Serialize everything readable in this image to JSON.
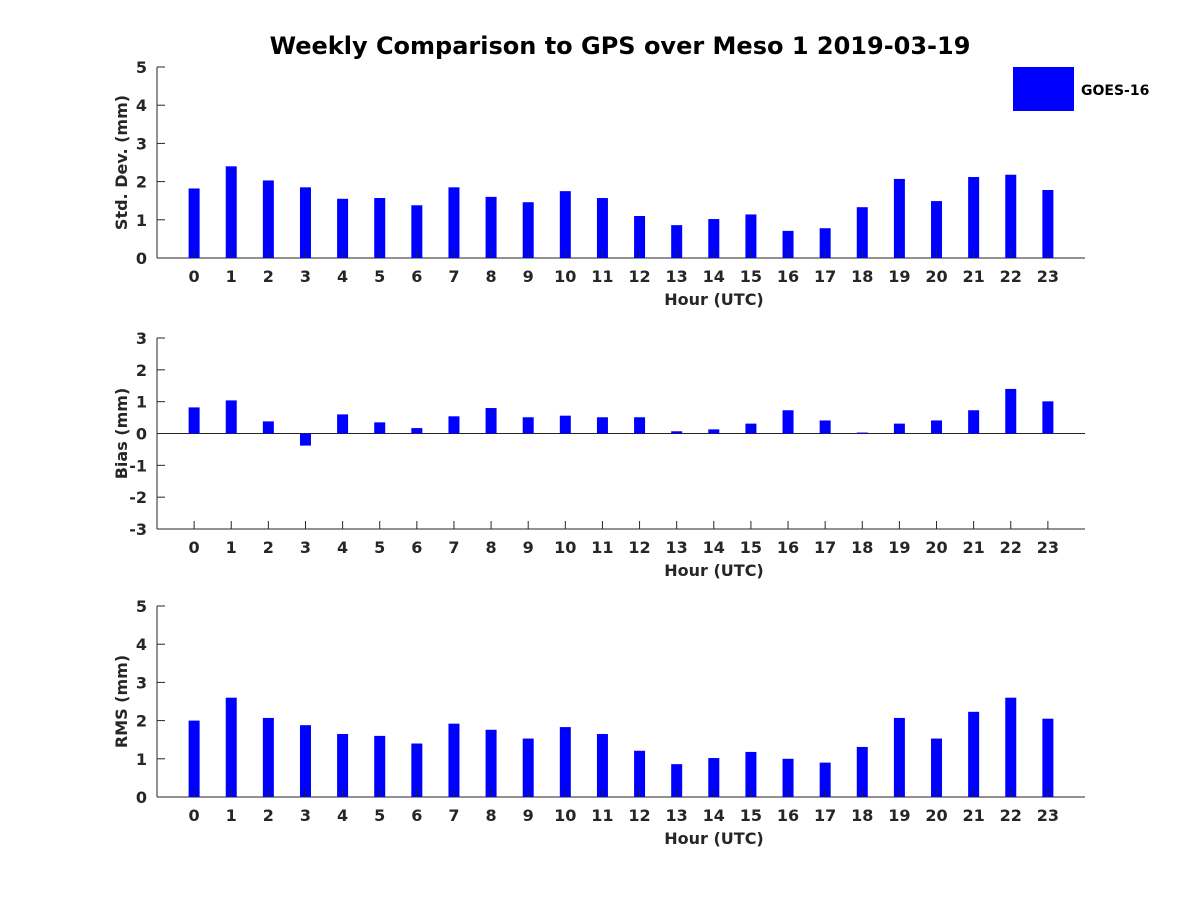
{
  "chart_data": {
    "title": "Weekly Comparison to GPS over Meso 1 2019-03-19",
    "legend": {
      "label": "GOES-16",
      "color": "#0000ff",
      "placement": "top-right"
    },
    "bar_color": "#0000ff",
    "panels": [
      {
        "type": "bar",
        "ylabel": "Std. Dev. (mm)",
        "xlabel": "Hour (UTC)",
        "ylim": [
          0,
          5
        ],
        "yticks": [
          "0",
          "1",
          "2",
          "3",
          "4",
          "5"
        ],
        "categories": [
          "0",
          "1",
          "2",
          "3",
          "4",
          "5",
          "6",
          "7",
          "8",
          "9",
          "10",
          "11",
          "12",
          "13",
          "14",
          "15",
          "16",
          "17",
          "18",
          "19",
          "20",
          "21",
          "22",
          "23"
        ],
        "values": [
          1.82,
          2.4,
          2.03,
          1.85,
          1.55,
          1.57,
          1.38,
          1.85,
          1.6,
          1.46,
          1.75,
          1.57,
          1.1,
          0.86,
          1.02,
          1.14,
          0.71,
          0.78,
          1.33,
          2.07,
          1.49,
          2.12,
          2.18,
          1.78
        ]
      },
      {
        "type": "bar",
        "ylabel": "Bias (mm)",
        "xlabel": "Hour (UTC)",
        "ylim": [
          -3,
          3
        ],
        "yticks": [
          "-3",
          "-2",
          "-1",
          "0",
          "1",
          "2",
          "3"
        ],
        "categories": [
          "0",
          "1",
          "2",
          "3",
          "4",
          "5",
          "6",
          "7",
          "8",
          "9",
          "10",
          "11",
          "12",
          "13",
          "14",
          "15",
          "16",
          "17",
          "18",
          "19",
          "20",
          "21",
          "22",
          "23"
        ],
        "values": [
          0.82,
          1.04,
          0.38,
          -0.38,
          0.6,
          0.35,
          0.17,
          0.54,
          0.8,
          0.51,
          0.56,
          0.51,
          0.51,
          0.07,
          0.13,
          0.31,
          0.73,
          0.41,
          0.03,
          0.31,
          0.41,
          0.73,
          1.4,
          1.01
        ]
      },
      {
        "type": "bar",
        "ylabel": "RMS (mm)",
        "xlabel": "Hour (UTC)",
        "ylim": [
          0,
          5
        ],
        "yticks": [
          "0",
          "1",
          "2",
          "3",
          "4",
          "5"
        ],
        "categories": [
          "0",
          "1",
          "2",
          "3",
          "4",
          "5",
          "6",
          "7",
          "8",
          "9",
          "10",
          "11",
          "12",
          "13",
          "14",
          "15",
          "16",
          "17",
          "18",
          "19",
          "20",
          "21",
          "22",
          "23"
        ],
        "values": [
          2.0,
          2.6,
          2.07,
          1.88,
          1.65,
          1.6,
          1.4,
          1.92,
          1.76,
          1.53,
          1.83,
          1.65,
          1.21,
          0.86,
          1.02,
          1.18,
          1.0,
          0.9,
          1.31,
          2.07,
          1.53,
          2.23,
          2.6,
          2.05
        ]
      }
    ]
  }
}
